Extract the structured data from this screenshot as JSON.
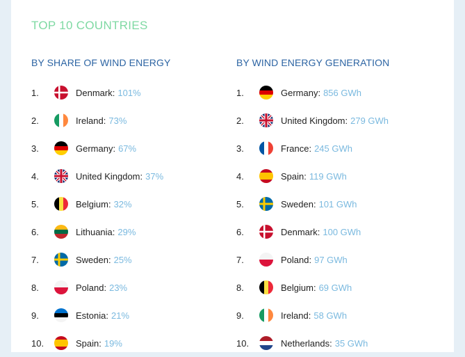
{
  "title": "TOP 10 COUNTRIES",
  "share": {
    "heading": "BY SHARE OF WIND ENERGY",
    "items": [
      {
        "rank": "1.",
        "flag": "denmark-flag",
        "name": "Denmark:",
        "value": "101%"
      },
      {
        "rank": "2.",
        "flag": "ireland-flag",
        "name": "Ireland:",
        "value": "73%"
      },
      {
        "rank": "3.",
        "flag": "germany-flag",
        "name": "Germany:",
        "value": "67%"
      },
      {
        "rank": "4.",
        "flag": "uk-flag",
        "name": "United Kingdom:",
        "value": "37%"
      },
      {
        "rank": "5.",
        "flag": "belgium-flag",
        "name": "Belgium:",
        "value": "32%"
      },
      {
        "rank": "6.",
        "flag": "lithuania-flag",
        "name": "Lithuania:",
        "value": "29%"
      },
      {
        "rank": "7.",
        "flag": "sweden-flag",
        "name": "Sweden:",
        "value": "25%"
      },
      {
        "rank": "8.",
        "flag": "poland-flag",
        "name": "Poland:",
        "value": "23%"
      },
      {
        "rank": "9.",
        "flag": "estonia-flag",
        "name": "Estonia:",
        "value": "21%"
      },
      {
        "rank": "10.",
        "flag": "spain-flag",
        "name": "Spain:",
        "value": "19%"
      }
    ]
  },
  "generation": {
    "heading": "BY WIND ENERGY GENERATION",
    "items": [
      {
        "rank": "1.",
        "flag": "germany-flag",
        "name": "Germany:",
        "value": "856 GWh"
      },
      {
        "rank": "2.",
        "flag": "uk-flag",
        "name": "United Kingdom:",
        "value": "279 GWh"
      },
      {
        "rank": "3.",
        "flag": "france-flag",
        "name": "France:",
        "value": "245 GWh"
      },
      {
        "rank": "4.",
        "flag": "spain-flag",
        "name": "Spain:",
        "value": "119 GWh"
      },
      {
        "rank": "5.",
        "flag": "sweden-flag",
        "name": "Sweden:",
        "value": "101 GWh"
      },
      {
        "rank": "6.",
        "flag": "denmark-flag",
        "name": "Denmark:",
        "value": "100 GWh"
      },
      {
        "rank": "7.",
        "flag": "poland-flag",
        "name": "Poland:",
        "value": "97 GWh"
      },
      {
        "rank": "8.",
        "flag": "belgium-flag",
        "name": "Belgium:",
        "value": "69 GWh"
      },
      {
        "rank": "9.",
        "flag": "ireland-flag",
        "name": "Ireland:",
        "value": "58 GWh"
      },
      {
        "rank": "10.",
        "flag": "netherlands-flag",
        "name": "Netherlands:",
        "value": "35 GWh"
      }
    ]
  }
}
